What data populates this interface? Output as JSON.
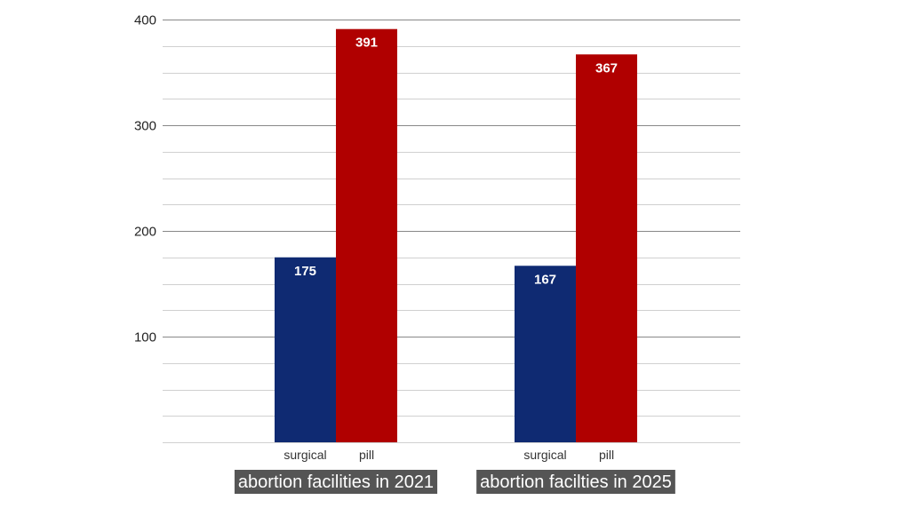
{
  "chart_data": {
    "type": "bar",
    "title": "",
    "xlabel": "",
    "ylabel": "",
    "ylim": [
      0,
      400
    ],
    "y_ticks": [
      100,
      200,
      300,
      400
    ],
    "minor_grid_step": 25,
    "grid": true,
    "legend": "none",
    "groups": [
      {
        "label": "abortion facilities in 2021",
        "bars": [
          {
            "category": "surgical",
            "value": 175
          },
          {
            "category": "pill",
            "value": 391
          }
        ]
      },
      {
        "label": "abortion facilties in 2025",
        "bars": [
          {
            "category": "surgical",
            "value": 167
          },
          {
            "category": "pill",
            "value": 367
          }
        ]
      }
    ],
    "colors": {
      "surgical": "#0f2a72",
      "pill": "#b00000",
      "group_label_bg": "#555555",
      "major_grid": "#888888",
      "minor_grid": "#d0d0d0"
    }
  }
}
